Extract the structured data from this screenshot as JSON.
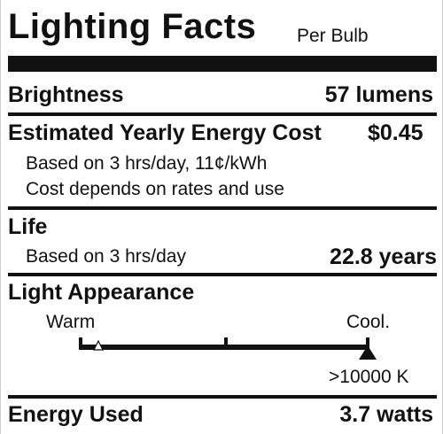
{
  "header": {
    "title": "Lighting Facts",
    "per_bulb": "Per Bulb"
  },
  "brightness": {
    "label": "Brightness",
    "value": "57 lumens"
  },
  "energy_cost": {
    "label": "Estimated Yearly Energy Cost",
    "value": "$0.45",
    "note1": "Based on 3 hrs/day, 11¢/kWh",
    "note2": "Cost depends on rates and use"
  },
  "life": {
    "label": "Life",
    "note": "Based on 3 hrs/day",
    "value": "22.8 years"
  },
  "light_appearance": {
    "label": "Light Appearance",
    "warm_label": "Warm",
    "cool_label": "Cool.",
    "position_fraction": 1.0,
    "color_temperature": ">10000 K"
  },
  "energy_used": {
    "label": "Energy Used",
    "value": "3.7 watts"
  }
}
